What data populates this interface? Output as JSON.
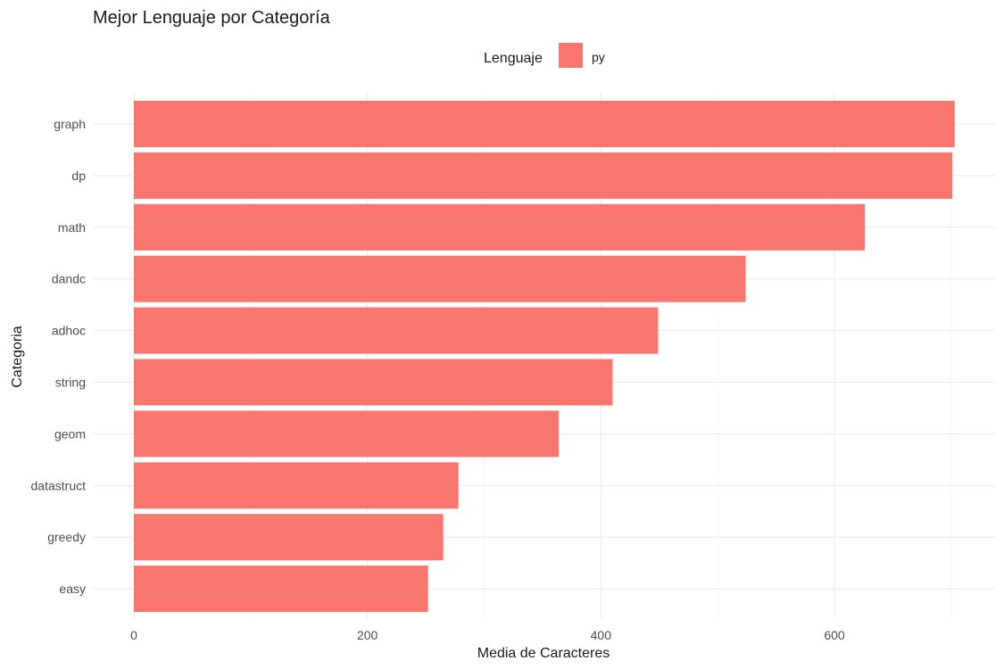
{
  "chart_data": {
    "type": "bar",
    "orientation": "horizontal",
    "title": "Mejor Lenguaje por Categoría",
    "xlabel": "Media de Caracteres",
    "ylabel": "Categoria",
    "categories": [
      "graph",
      "dp",
      "math",
      "dandc",
      "adhoc",
      "string",
      "geom",
      "datastruct",
      "greedy",
      "easy"
    ],
    "series": [
      {
        "name": "py",
        "color": "#F8766D",
        "values": [
          703,
          701,
          626,
          524,
          449,
          410,
          364,
          278,
          265,
          252
        ]
      }
    ],
    "xlim": [
      0,
      720
    ],
    "xticks": [
      0,
      200,
      400,
      600
    ],
    "legend": {
      "title": "Lenguaje",
      "placement": "top"
    },
    "grid": true
  }
}
